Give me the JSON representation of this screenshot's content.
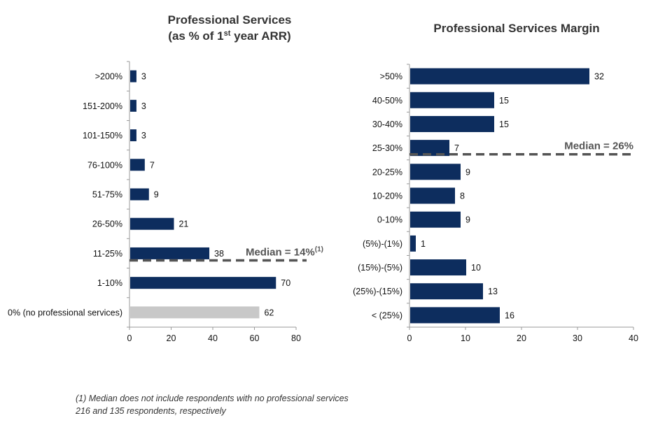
{
  "colors": {
    "bar": "#0d2d5e",
    "bar_gray": "#c8c8c8",
    "median_line": "#555555",
    "axis": "#999999"
  },
  "chart_data": [
    {
      "type": "bar",
      "orientation": "horizontal",
      "title_line1": "Professional Services",
      "title_line2_pre": "(as % of 1",
      "title_line2_sup": "st",
      "title_line2_post": " year ARR)",
      "categories": [
        ">200%",
        "151-200%",
        "101-150%",
        "76-100%",
        "51-75%",
        "26-50%",
        "11-25%",
        "1-10%",
        "0% (no professional services)"
      ],
      "values": [
        3,
        3,
        3,
        7,
        9,
        21,
        38,
        70,
        62
      ],
      "highlight_gray": [
        false,
        false,
        false,
        false,
        false,
        false,
        false,
        false,
        true
      ],
      "xlim": [
        0,
        80
      ],
      "xticks": [
        0,
        20,
        40,
        60,
        80
      ],
      "median_label": "Median = 14%",
      "median_label_sup": "(1)",
      "median_after_category": "11-25%"
    },
    {
      "type": "bar",
      "orientation": "horizontal",
      "title_line1": "Professional Services Margin",
      "categories": [
        ">50%",
        "40-50%",
        "30-40%",
        "25-30%",
        "20-25%",
        "10-20%",
        "0-10%",
        "(5%)-(1%)",
        "(15%)-(5%)",
        "(25%)-(15%)",
        "< (25%)"
      ],
      "values": [
        32,
        15,
        15,
        7,
        9,
        8,
        9,
        1,
        10,
        13,
        16
      ],
      "xlim": [
        0,
        40
      ],
      "xticks": [
        0,
        10,
        20,
        30,
        40
      ],
      "median_label": "Median = 26%",
      "median_after_category": "25-30%"
    }
  ],
  "footnotes": {
    "line1": "(1)    Median does not include respondents with no professional services",
    "line2": "216 and 135 respondents, respectively"
  }
}
